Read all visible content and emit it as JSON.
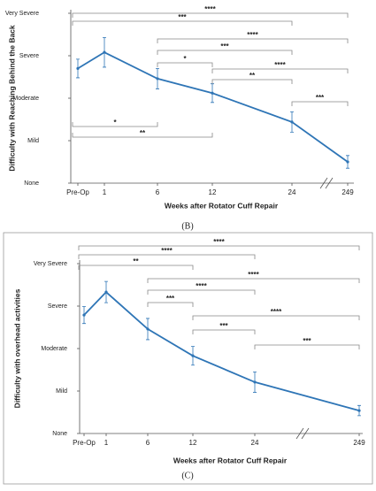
{
  "chart_data": [
    {
      "type": "line",
      "y_label": "Difficulty with Reaching Behind the Back",
      "x_label": "Weeks after Rotator Cuff Repair",
      "caption": "(B)",
      "categories": [
        "Pre-Op",
        "1",
        "6",
        "12",
        "24",
        "249"
      ],
      "values": [
        2.7,
        3.08,
        2.46,
        2.12,
        1.44,
        0.5
      ],
      "errors": [
        0.22,
        0.35,
        0.24,
        0.22,
        0.24,
        0.15
      ],
      "color": "#2e75b6",
      "ylim": [
        0,
        4
      ],
      "yticks": [
        {
          "value": 0,
          "label": "None"
        },
        {
          "value": 1,
          "label": "Mild"
        },
        {
          "value": 2,
          "label": "Moderate"
        },
        {
          "value": 3,
          "label": "Severe"
        },
        {
          "value": 4,
          "label": "Very Severe"
        }
      ],
      "brackets": [
        {
          "from": 0,
          "to": 5,
          "label": "****"
        },
        {
          "from": 0,
          "to": 4,
          "label": "***"
        },
        {
          "from": 2,
          "to": 5,
          "label": "****"
        },
        {
          "from": 2,
          "to": 4,
          "label": "***"
        },
        {
          "from": 2,
          "to": 3,
          "label": "*"
        },
        {
          "from": 3,
          "to": 5,
          "label": "****"
        },
        {
          "from": 3,
          "to": 4,
          "label": "**"
        },
        {
          "from": 4,
          "to": 5,
          "label": "***"
        },
        {
          "from": 0,
          "to": 2,
          "label": "*"
        },
        {
          "from": 0,
          "to": 3,
          "label": "**"
        }
      ]
    },
    {
      "type": "line",
      "y_label": "Difficulty with overhead activities",
      "x_label": "Weeks after Rotator Cuff Repair",
      "caption": "(C)",
      "categories": [
        "Pre-Op",
        "1",
        "6",
        "12",
        "24",
        "249"
      ],
      "values": [
        2.79,
        3.33,
        2.46,
        1.83,
        1.21,
        0.54
      ],
      "errors": [
        0.2,
        0.25,
        0.25,
        0.22,
        0.24,
        0.12
      ],
      "color": "#2e75b6",
      "ylim": [
        0,
        4
      ],
      "yticks": [
        {
          "value": 0,
          "label": "None"
        },
        {
          "value": 1,
          "label": "Mild"
        },
        {
          "value": 2,
          "label": "Moderate"
        },
        {
          "value": 3,
          "label": "Severe"
        },
        {
          "value": 4,
          "label": "Very Severe"
        }
      ],
      "brackets": [
        {
          "from": 0,
          "to": 5,
          "label": "****"
        },
        {
          "from": 0,
          "to": 4,
          "label": "****"
        },
        {
          "from": 0,
          "to": 3,
          "label": "**"
        },
        {
          "from": 2,
          "to": 5,
          "label": "****"
        },
        {
          "from": 2,
          "to": 4,
          "label": "****"
        },
        {
          "from": 2,
          "to": 3,
          "label": "***"
        },
        {
          "from": 3,
          "to": 5,
          "label": "****"
        },
        {
          "from": 3,
          "to": 4,
          "label": "***"
        },
        {
          "from": 4,
          "to": 5,
          "label": "***"
        }
      ]
    }
  ]
}
